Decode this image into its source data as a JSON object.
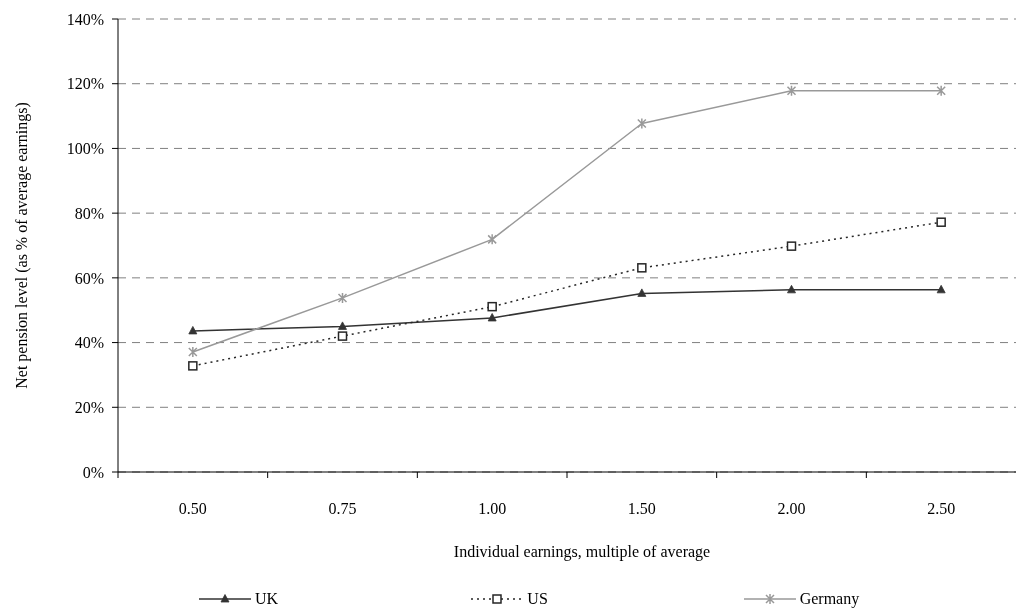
{
  "chart_data": {
    "type": "line",
    "xlabel": "Individual earnings, multiple of average",
    "ylabel": "Net pension level (as % of average earnings)",
    "categories": [
      "0.50",
      "0.75",
      "1.00",
      "1.50",
      "2.00",
      "2.50"
    ],
    "series": [
      {
        "name": "UK",
        "color": "#333333",
        "marker": "triangle",
        "line_style": "solid",
        "values": [
          43.6,
          45,
          47.6,
          55.2,
          56.3,
          56.3
        ]
      },
      {
        "name": "US",
        "color": "#262626",
        "marker": "square",
        "line_style": "dotted",
        "values": [
          32.8,
          42,
          51.1,
          63.1,
          69.8,
          77.2
        ]
      },
      {
        "name": "Germany",
        "color": "#999999",
        "marker": "cross",
        "line_style": "solid",
        "values": [
          37.1,
          53.8,
          71.9,
          107.7,
          117.8,
          117.8
        ]
      }
    ],
    "ylim": [
      0,
      140
    ],
    "yticks": [
      {
        "value": 0,
        "label": "0%"
      },
      {
        "value": 20,
        "label": "20%"
      },
      {
        "value": 40,
        "label": "40%"
      },
      {
        "value": 60,
        "label": "60%"
      },
      {
        "value": 80,
        "label": "80%"
      },
      {
        "value": 100,
        "label": "100%"
      },
      {
        "value": 120,
        "label": "120%"
      },
      {
        "value": 140,
        "label": "140%"
      }
    ],
    "grid": "y",
    "legend": "bottom"
  }
}
